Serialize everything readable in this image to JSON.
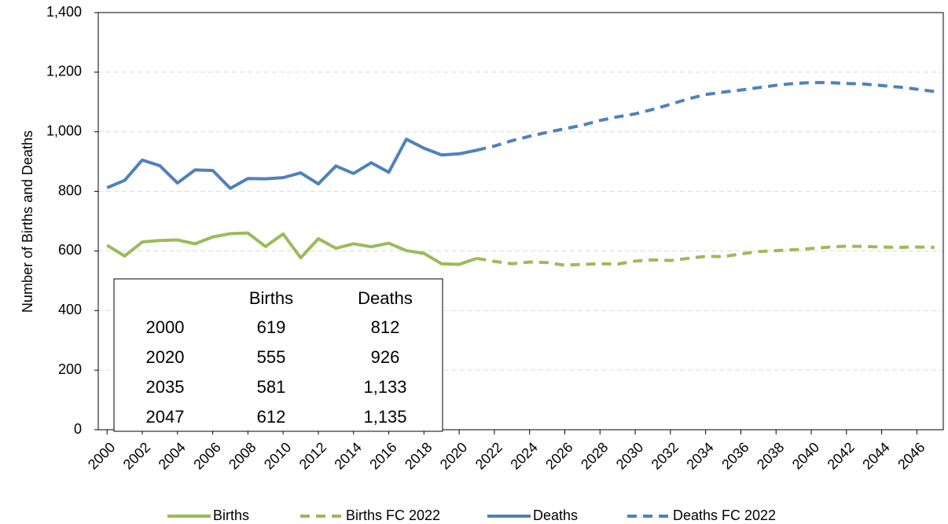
{
  "chart_data": {
    "type": "line",
    "y_label": "Number of Births and Deaths",
    "x": [
      2000,
      2001,
      2002,
      2003,
      2004,
      2005,
      2006,
      2007,
      2008,
      2009,
      2010,
      2011,
      2012,
      2013,
      2014,
      2015,
      2016,
      2017,
      2018,
      2019,
      2020,
      2021,
      2022,
      2023,
      2024,
      2025,
      2026,
      2027,
      2028,
      2029,
      2030,
      2031,
      2032,
      2033,
      2034,
      2035,
      2036,
      2037,
      2038,
      2039,
      2040,
      2041,
      2042,
      2043,
      2044,
      2045,
      2046,
      2047
    ],
    "xlim": [
      1999.5,
      2047.5
    ],
    "xticks": [
      2000,
      2002,
      2004,
      2006,
      2008,
      2010,
      2012,
      2014,
      2016,
      2018,
      2020,
      2022,
      2024,
      2026,
      2028,
      2030,
      2032,
      2034,
      2036,
      2038,
      2040,
      2042,
      2044,
      2046
    ],
    "ylim": [
      0,
      1400
    ],
    "yticks": [
      0,
      200,
      400,
      600,
      800,
      {
        "value": 1000,
        "label": "1,000"
      },
      {
        "value": 1200,
        "label": "1,200"
      },
      {
        "value": 1400,
        "label": "1,400"
      }
    ],
    "grid": true,
    "legend": "bottom",
    "series": [
      {
        "name": "Births",
        "color": "#9bbb59",
        "line_style": "solid",
        "values": [
          619,
          583,
          630,
          635,
          637,
          624,
          647,
          658,
          660,
          615,
          657,
          577,
          641,
          609,
          624,
          614,
          626,
          601,
          592,
          557,
          555,
          575,
          null,
          null,
          null,
          null,
          null,
          null,
          null,
          null,
          null,
          null,
          null,
          null,
          null,
          null,
          null,
          null,
          null,
          null,
          null,
          null,
          null,
          null,
          null,
          null,
          null,
          null
        ]
      },
      {
        "name": "Births FC 2022",
        "color": "#9bbb59",
        "line_style": "dashed",
        "values": [
          null,
          null,
          null,
          null,
          null,
          null,
          null,
          null,
          null,
          null,
          null,
          null,
          null,
          null,
          null,
          null,
          null,
          null,
          null,
          null,
          null,
          575,
          565,
          557,
          563,
          561,
          552,
          555,
          557,
          556,
          566,
          570,
          568,
          575,
          582,
          581,
          590,
          598,
          601,
          604,
          608,
          613,
          616,
          615,
          613,
          612,
          613,
          612
        ]
      },
      {
        "name": "Deaths",
        "color": "#4f81bd",
        "line_style": "solid",
        "values": [
          812,
          837,
          905,
          886,
          828,
          872,
          870,
          810,
          843,
          842,
          846,
          862,
          825,
          885,
          860,
          896,
          864,
          975,
          945,
          922,
          926,
          938,
          null,
          null,
          null,
          null,
          null,
          null,
          null,
          null,
          null,
          null,
          null,
          null,
          null,
          null,
          null,
          null,
          null,
          null,
          null,
          null,
          null,
          null,
          null,
          null,
          null,
          null
        ]
      },
      {
        "name": "Deaths FC 2022",
        "color": "#4f81bd",
        "line_style": "dashed",
        "values": [
          null,
          null,
          null,
          null,
          null,
          null,
          null,
          null,
          null,
          null,
          null,
          null,
          null,
          null,
          null,
          null,
          null,
          null,
          null,
          null,
          null,
          938,
          952,
          970,
          985,
          998,
          1010,
          1022,
          1038,
          1050,
          1060,
          1075,
          1092,
          1110,
          1125,
          1133,
          1140,
          1148,
          1156,
          1162,
          1165,
          1165,
          1162,
          1160,
          1155,
          1150,
          1143,
          1135
        ]
      }
    ],
    "table": {
      "columns": [
        "Births",
        "Deaths"
      ],
      "rows": [
        [
          "2000",
          "619",
          "812"
        ],
        [
          "2020",
          "555",
          "926"
        ],
        [
          "2035",
          "581",
          "1,133"
        ],
        [
          "2047",
          "612",
          "1,135"
        ]
      ]
    }
  }
}
